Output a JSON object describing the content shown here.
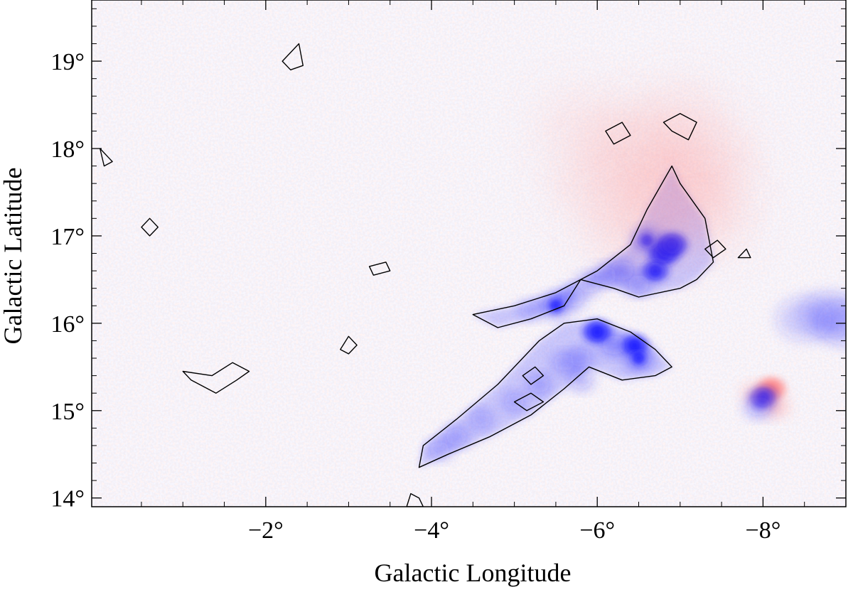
{
  "chart_data": {
    "type": "heatmap",
    "title": "",
    "xlabel": "Galactic Longitude",
    "ylabel": "Galactic Latitude",
    "x_axis_reversed": true,
    "xlim": [
      0.1,
      -9.0
    ],
    "ylim": [
      13.9,
      19.7
    ],
    "x_ticks": [
      {
        "value": -2,
        "label": "−2°"
      },
      {
        "value": -4,
        "label": "−4°"
      },
      {
        "value": -6,
        "label": "−6°"
      },
      {
        "value": -8,
        "label": "−8°"
      }
    ],
    "y_ticks": [
      {
        "value": 14,
        "label": "14°"
      },
      {
        "value": 15,
        "label": "15°"
      },
      {
        "value": 16,
        "label": "16°"
      },
      {
        "value": 17,
        "label": "17°"
      },
      {
        "value": 18,
        "label": "18°"
      },
      {
        "value": 19,
        "label": "19°"
      }
    ],
    "colormap": {
      "negative": "#1a1aff",
      "zero": "#f4f2f6",
      "positive": "#ff8080"
    },
    "grid": false,
    "contours": [
      {
        "id": "northern-filament",
        "points": [
          [
            -4.5,
            16.1
          ],
          [
            -5.0,
            16.2
          ],
          [
            -5.5,
            16.35
          ],
          [
            -6.0,
            16.6
          ],
          [
            -6.4,
            16.9
          ],
          [
            -6.6,
            17.3
          ],
          [
            -6.9,
            17.8
          ],
          [
            -7.0,
            17.6
          ],
          [
            -7.3,
            17.2
          ],
          [
            -7.4,
            16.7
          ],
          [
            -7.2,
            16.5
          ],
          [
            -7.0,
            16.4
          ],
          [
            -6.5,
            16.3
          ],
          [
            -6.2,
            16.4
          ],
          [
            -5.8,
            16.5
          ],
          [
            -5.6,
            16.2
          ],
          [
            -5.2,
            16.05
          ],
          [
            -4.8,
            15.95
          ]
        ]
      },
      {
        "id": "southern-filament",
        "points": [
          [
            -3.9,
            14.6
          ],
          [
            -4.3,
            14.9
          ],
          [
            -4.8,
            15.3
          ],
          [
            -5.3,
            15.8
          ],
          [
            -5.6,
            16.0
          ],
          [
            -6.0,
            16.05
          ],
          [
            -6.4,
            15.9
          ],
          [
            -6.7,
            15.7
          ],
          [
            -6.9,
            15.5
          ],
          [
            -6.7,
            15.4
          ],
          [
            -6.3,
            15.35
          ],
          [
            -5.9,
            15.5
          ],
          [
            -5.6,
            15.25
          ],
          [
            -5.2,
            14.95
          ],
          [
            -4.7,
            14.7
          ],
          [
            -4.2,
            14.5
          ],
          [
            -3.85,
            14.35
          ]
        ]
      },
      {
        "id": "bottom-clump",
        "points": [
          [
            -3.7,
            13.9
          ],
          [
            -3.75,
            14.05
          ],
          [
            -3.85,
            14.0
          ],
          [
            -3.9,
            13.9
          ]
        ]
      },
      {
        "id": "left-clump",
        "points": [
          [
            -1.0,
            15.45
          ],
          [
            -1.35,
            15.4
          ],
          [
            -1.6,
            15.55
          ],
          [
            -1.8,
            15.45
          ],
          [
            -1.65,
            15.35
          ],
          [
            -1.4,
            15.2
          ],
          [
            -1.1,
            15.35
          ]
        ]
      },
      {
        "id": "north-clump-a",
        "points": [
          [
            -6.1,
            18.2
          ],
          [
            -6.3,
            18.3
          ],
          [
            -6.4,
            18.15
          ],
          [
            -6.2,
            18.05
          ]
        ]
      },
      {
        "id": "north-clump-b",
        "points": [
          [
            -6.8,
            18.3
          ],
          [
            -7.0,
            18.4
          ],
          [
            -7.2,
            18.3
          ],
          [
            -7.1,
            18.1
          ],
          [
            -6.9,
            18.2
          ]
        ]
      },
      {
        "id": "upper-left-clump",
        "points": [
          [
            -2.2,
            19.0
          ],
          [
            -2.4,
            19.2
          ],
          [
            -2.45,
            18.95
          ],
          [
            -2.3,
            18.9
          ]
        ]
      },
      {
        "id": "edge-clump-a",
        "points": [
          [
            0.0,
            18.0
          ],
          [
            -0.1,
            17.9
          ],
          [
            -0.15,
            17.85
          ],
          [
            -0.05,
            17.8
          ]
        ]
      },
      {
        "id": "edge-clump-b",
        "points": [
          [
            -0.5,
            17.1
          ],
          [
            -0.6,
            17.2
          ],
          [
            -0.7,
            17.1
          ],
          [
            -0.6,
            17.0
          ]
        ]
      },
      {
        "id": "small-clump-a",
        "points": [
          [
            -3.25,
            16.65
          ],
          [
            -3.45,
            16.7
          ],
          [
            -3.5,
            16.6
          ],
          [
            -3.3,
            16.55
          ]
        ]
      },
      {
        "id": "small-clump-b",
        "points": [
          [
            -2.9,
            15.7
          ],
          [
            -3.0,
            15.85
          ],
          [
            -3.1,
            15.75
          ],
          [
            -3.0,
            15.65
          ]
        ]
      },
      {
        "id": "small-clump-c",
        "points": [
          [
            -5.1,
            15.4
          ],
          [
            -5.25,
            15.5
          ],
          [
            -5.35,
            15.4
          ],
          [
            -5.2,
            15.3
          ]
        ]
      },
      {
        "id": "small-clump-d",
        "points": [
          [
            -5.0,
            15.1
          ],
          [
            -5.2,
            15.2
          ],
          [
            -5.35,
            15.1
          ],
          [
            -5.15,
            15.0
          ]
        ]
      },
      {
        "id": "small-clump-e",
        "points": [
          [
            -7.3,
            16.85
          ],
          [
            -7.45,
            16.95
          ],
          [
            -7.55,
            16.85
          ],
          [
            -7.4,
            16.75
          ]
        ]
      },
      {
        "id": "small-clump-f",
        "points": [
          [
            -7.7,
            16.75
          ],
          [
            -7.8,
            16.85
          ],
          [
            -7.85,
            16.75
          ]
        ]
      }
    ],
    "features": [
      {
        "id": "northern-filament-core",
        "sign": "negative",
        "points": [
          [
            -6.8,
            16.8,
            1.0
          ],
          [
            -6.9,
            16.9,
            1.0
          ],
          [
            -6.7,
            16.6,
            0.8
          ],
          [
            -6.6,
            16.95,
            0.7
          ],
          [
            -6.3,
            16.6,
            0.6
          ],
          [
            -6.5,
            16.45,
            0.5
          ],
          [
            -5.5,
            16.2,
            0.7
          ],
          [
            -5.7,
            16.3,
            0.6
          ],
          [
            -5.9,
            16.45,
            0.5
          ],
          [
            -6.1,
            16.55,
            0.5
          ],
          [
            -5.2,
            16.15,
            0.4
          ]
        ]
      },
      {
        "id": "southern-filament-body",
        "sign": "negative",
        "points": [
          [
            -6.0,
            15.9,
            0.9
          ],
          [
            -6.45,
            15.75,
            0.8
          ],
          [
            -6.5,
            15.6,
            0.7
          ],
          [
            -6.2,
            15.75,
            0.6
          ],
          [
            -5.8,
            15.6,
            0.5
          ],
          [
            -5.6,
            15.55,
            0.45
          ],
          [
            -5.3,
            15.3,
            0.45
          ],
          [
            -5.0,
            15.1,
            0.4
          ],
          [
            -4.6,
            14.9,
            0.4
          ],
          [
            -4.3,
            14.7,
            0.45
          ],
          [
            -4.1,
            14.55,
            0.4
          ],
          [
            -5.8,
            15.35,
            0.5
          ]
        ]
      },
      {
        "id": "north-diffuse",
        "sign": "positive",
        "points": [
          [
            -6.5,
            18.0,
            0.35
          ],
          [
            -7.0,
            17.5,
            0.35
          ],
          [
            -7.3,
            17.9,
            0.3
          ],
          [
            -6.0,
            17.6,
            0.25
          ],
          [
            -6.5,
            17.1,
            0.35
          ],
          [
            -7.3,
            17.2,
            0.25
          ],
          [
            -5.8,
            18.3,
            0.2
          ],
          [
            -7.0,
            18.4,
            0.2
          ]
        ]
      },
      {
        "id": "point-source",
        "sign": "mixed",
        "points": [
          [
            -8.1,
            15.25,
            0.9
          ],
          [
            -8.0,
            15.15,
            0.8
          ],
          [
            -8.15,
            15.05,
            0.6
          ],
          [
            -7.95,
            15.05,
            0.6
          ],
          [
            -7.9,
            15.2,
            0.5
          ]
        ]
      },
      {
        "id": "right-edge-band",
        "sign": "negative",
        "points": [
          [
            -8.8,
            16.1,
            0.3
          ],
          [
            -8.5,
            16.05,
            0.25
          ],
          [
            -9.0,
            16.0,
            0.3
          ]
        ]
      }
    ]
  }
}
